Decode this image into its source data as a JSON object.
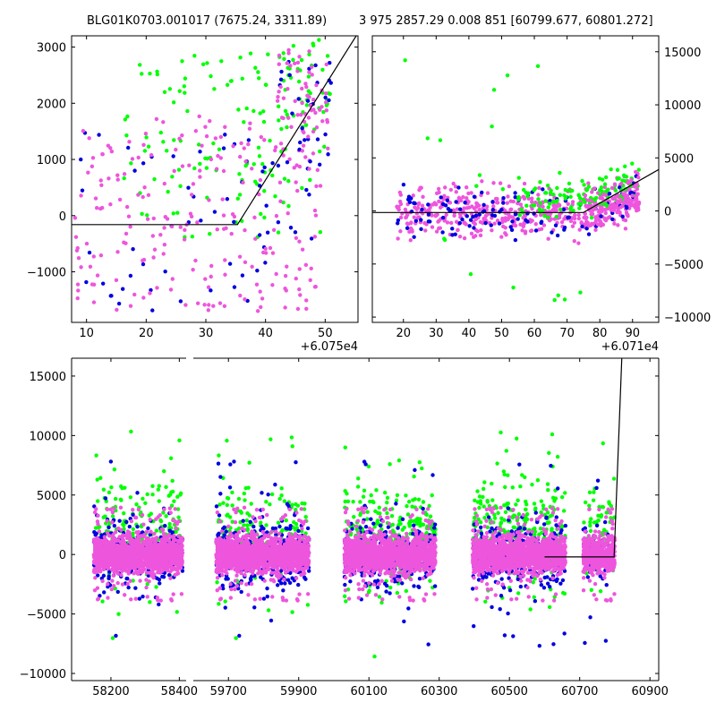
{
  "titles": {
    "left": "BLG01K0703.001017 (7675.24, 3311.89)",
    "right": "3 975 2857.29 0.008 851 [60799.677, 60801.272]"
  },
  "colors": {
    "green": "#00ff00",
    "blue": "#0000e0",
    "pink": "#ee55dd",
    "line": "#000000"
  },
  "chart_data": [
    {
      "type": "scatter",
      "name": "zoom-left",
      "xlim": [
        7.5,
        55.5
      ],
      "ylim": [
        -1900,
        3200
      ],
      "xticks": [
        10,
        20,
        30,
        40,
        50
      ],
      "xtick_labels": [
        "10",
        "20",
        "30",
        "40",
        "50"
      ],
      "yticks": [
        -1000,
        0,
        1000,
        2000,
        3000
      ],
      "ytick_labels": [
        "−1000",
        "0",
        "1000",
        "2000",
        "3000"
      ],
      "x_offset_label": "+6.075e4",
      "model_line": [
        [
          7.5,
          -160
        ],
        [
          35.3,
          -160
        ],
        [
          55.5,
          3250
        ]
      ],
      "clusters": [
        {
          "color": "green",
          "n": 120,
          "x": [
            16,
            50
          ],
          "y": [
            -400,
            2900
          ]
        },
        {
          "color": "blue",
          "n": 60,
          "x": [
            8,
            48
          ],
          "y": [
            -1700,
            1500
          ]
        },
        {
          "color": "pink",
          "n": 220,
          "x": [
            8,
            50
          ],
          "y": [
            -1700,
            1800
          ]
        },
        {
          "color": "green",
          "n": 40,
          "x": [
            42,
            51
          ],
          "y": [
            1500,
            3200
          ]
        },
        {
          "color": "blue",
          "n": 30,
          "x": [
            42,
            51
          ],
          "y": [
            800,
            2800
          ]
        },
        {
          "color": "pink",
          "n": 60,
          "x": [
            42,
            51
          ],
          "y": [
            1000,
            3000
          ]
        }
      ]
    },
    {
      "type": "scatter",
      "name": "zoom-right",
      "xlim": [
        10.5,
        98
      ],
      "ylim": [
        -10500,
        16500
      ],
      "xticks": [
        10,
        20,
        30,
        40,
        50,
        60,
        70,
        80,
        90
      ],
      "xtick_labels": [
        "10",
        "20",
        "30",
        "40",
        "50",
        "60",
        "70",
        "80",
        "90"
      ],
      "yticks": [
        -10000,
        -5000,
        0,
        5000,
        10000,
        15000
      ],
      "ytick_labels": [
        "−10000",
        "−5000",
        "0",
        "5000",
        "10000",
        "15000"
      ],
      "x_offset_label": "+6.071e4",
      "model_line": [
        [
          10.5,
          -150
        ],
        [
          75,
          -150
        ],
        [
          98,
          3900
        ]
      ],
      "clusters": [
        {
          "color": "pink",
          "n": 500,
          "x": [
            18,
            92
          ],
          "y": [
            -2500,
            2000
          ]
        },
        {
          "color": "blue",
          "n": 120,
          "x": [
            18,
            92
          ],
          "y": [
            -2500,
            1800
          ]
        },
        {
          "color": "green",
          "n": 120,
          "x": [
            55,
            92
          ],
          "y": [
            0,
            4200
          ]
        },
        {
          "color": "pink",
          "n": 80,
          "x": [
            75,
            92
          ],
          "y": [
            0,
            4000
          ]
        },
        {
          "color": "green",
          "n": 18,
          "x": [
            20,
            80
          ],
          "y": [
            -9000,
            15500
          ]
        }
      ]
    },
    {
      "type": "scatter",
      "name": "full-lightcurve",
      "segments": [
        {
          "xlim": [
            58085,
            58420
          ],
          "xticks": [
            58200,
            58400
          ],
          "xtick_labels": [
            "58200",
            "58400"
          ]
        },
        {
          "xlim": [
            59600,
            60925
          ],
          "xticks": [
            59700,
            59900,
            60100,
            60300,
            60500,
            60700,
            60900
          ],
          "xtick_labels": [
            "59700",
            "59900",
            "60100",
            "60300",
            "60500",
            "60700",
            "60900"
          ]
        }
      ],
      "ylim": [
        -10600,
        16500
      ],
      "yticks": [
        -10000,
        -5000,
        0,
        5000,
        10000,
        15000
      ],
      "ytick_labels": [
        "−10000",
        "−5000",
        "0",
        "5000",
        "10000",
        "15000"
      ],
      "model_line": [
        [
          60600,
          -200
        ],
        [
          60798,
          -200
        ],
        [
          60820,
          16600
        ]
      ],
      "seasons": [
        {
          "x": [
            58150,
            58410
          ],
          "n_pink": 1400,
          "n_blue": 250,
          "n_green": 200
        },
        {
          "x": [
            59665,
            59930
          ],
          "n_pink": 1400,
          "n_blue": 350,
          "n_green": 150
        },
        {
          "x": [
            60030,
            60290
          ],
          "n_pink": 1400,
          "n_blue": 250,
          "n_green": 250
        },
        {
          "x": [
            60395,
            60660
          ],
          "n_pink": 1400,
          "n_blue": 300,
          "n_green": 250
        },
        {
          "x": [
            60710,
            60800
          ],
          "n_pink": 450,
          "n_blue": 60,
          "n_green": 60
        }
      ]
    }
  ]
}
